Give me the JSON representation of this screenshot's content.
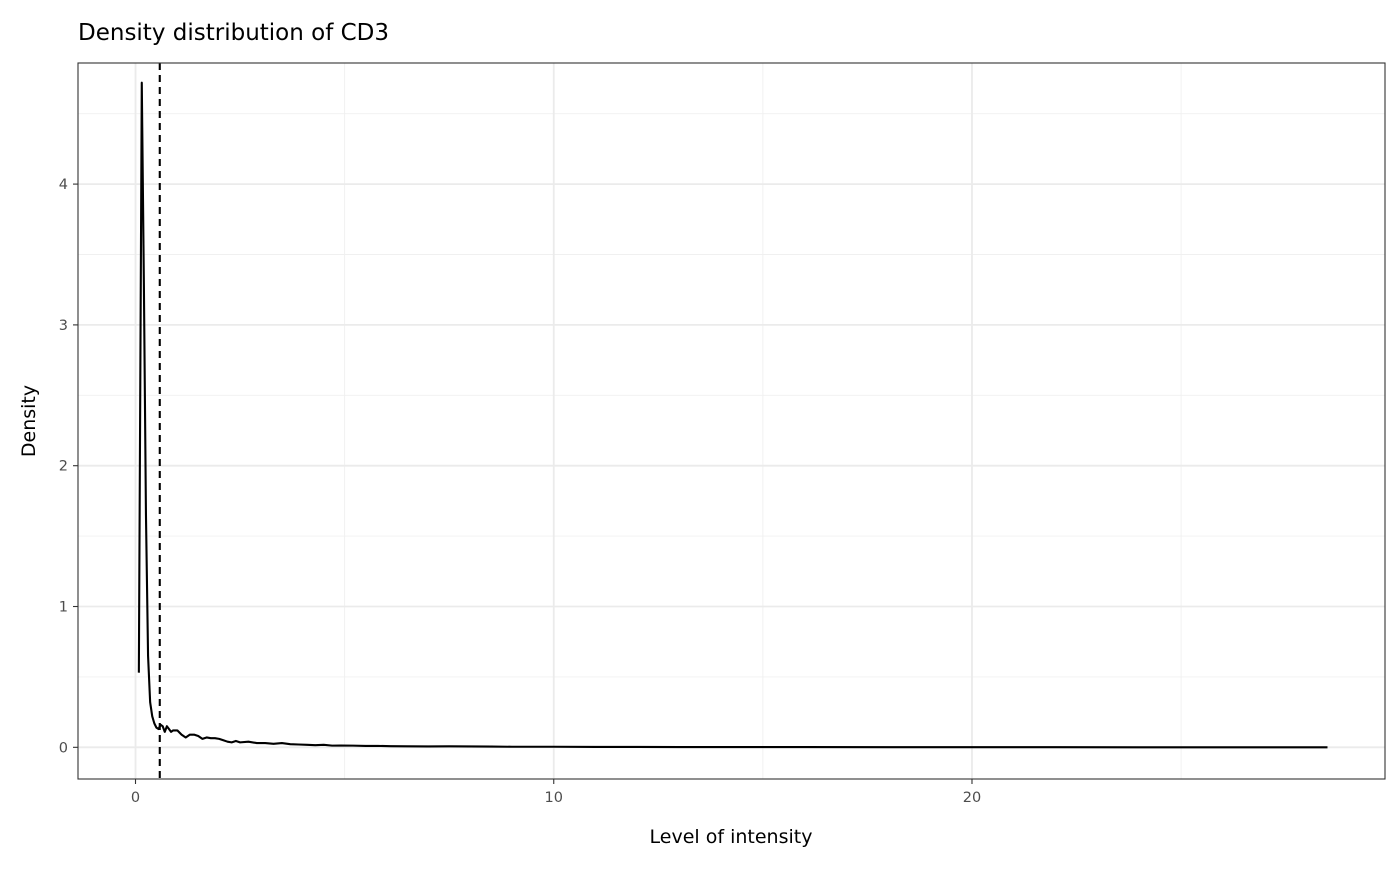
{
  "chart_data": {
    "type": "line",
    "title": "Density distribution of CD3",
    "xlabel": "Level of intensity",
    "ylabel": "Density",
    "xlim": [
      -1.375,
      29.875
    ],
    "ylim": [
      -0.225,
      4.86
    ],
    "x_ticks": [
      0,
      10,
      20
    ],
    "x_minor_ticks": [
      5,
      15,
      25
    ],
    "y_ticks": [
      0,
      1,
      2,
      3,
      4
    ],
    "y_minor_ticks": [
      0.5,
      1.5,
      2.5,
      3.5,
      4.5
    ],
    "grid": true,
    "legend": "none",
    "series": [
      {
        "x": [
          0.08,
          0.15,
          0.2,
          0.25,
          0.3,
          0.35,
          0.4,
          0.45,
          0.5,
          0.55,
          0.6,
          0.65,
          0.7,
          0.75,
          0.8,
          0.85,
          0.9,
          0.95,
          1.0,
          1.1,
          1.2,
          1.3,
          1.4,
          1.5,
          1.6,
          1.7,
          1.8,
          1.9,
          2.0,
          2.1,
          2.2,
          2.3,
          2.4,
          2.5,
          2.7,
          2.9,
          3.1,
          3.3,
          3.5,
          3.7,
          3.9,
          4.1,
          4.3,
          4.5,
          4.7,
          4.9,
          5.2,
          5.5,
          5.8,
          6.1,
          6.5,
          7.0,
          7.5,
          8.0,
          8.5,
          9.0,
          9.5,
          10.0,
          11.0,
          12.0,
          13.0,
          14.0,
          16.0,
          18.0,
          20.0,
          22.0,
          24.0,
          26.0,
          28.5
        ],
        "values": [
          0.53,
          4.72,
          3.3,
          1.65,
          0.65,
          0.32,
          0.22,
          0.17,
          0.14,
          0.13,
          0.16,
          0.15,
          0.11,
          0.15,
          0.13,
          0.11,
          0.12,
          0.12,
          0.12,
          0.09,
          0.07,
          0.09,
          0.09,
          0.08,
          0.06,
          0.07,
          0.065,
          0.065,
          0.06,
          0.05,
          0.04,
          0.035,
          0.045,
          0.035,
          0.04,
          0.03,
          0.03,
          0.025,
          0.03,
          0.022,
          0.02,
          0.018,
          0.015,
          0.018,
          0.012,
          0.013,
          0.012,
          0.01,
          0.01,
          0.008,
          0.007,
          0.006,
          0.007,
          0.006,
          0.005,
          0.004,
          0.004,
          0.004,
          0.003,
          0.003,
          0.002,
          0.002,
          0.002,
          0.001,
          0.001,
          0.001,
          0.0,
          0.0,
          0.0
        ]
      }
    ],
    "annotations": [
      {
        "type": "vline",
        "x": 0.58,
        "style": "dashed"
      }
    ]
  }
}
